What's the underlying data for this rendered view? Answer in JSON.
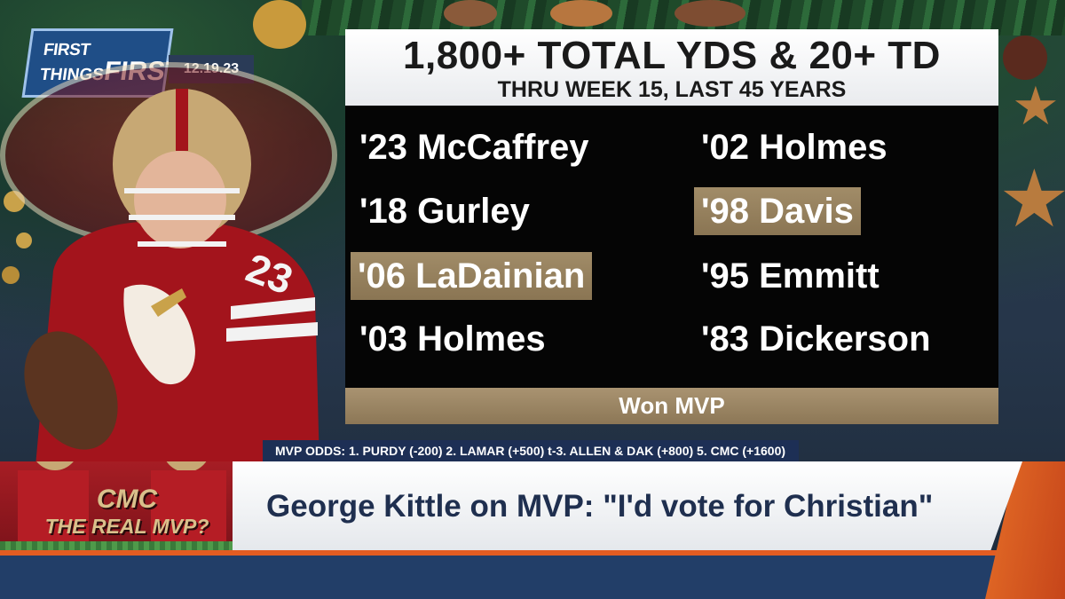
{
  "show": {
    "logo_line1": "FIRST",
    "logo_line2_small": "THINGS",
    "logo_line2_big": "FIRST",
    "date": "12.19.23"
  },
  "graphic": {
    "title": "1,800+ TOTAL YDS & 20+ TD",
    "subtitle": "THRU WEEK 15, LAST 45 YEARS",
    "left_column": [
      {
        "label": "'23 McCaffrey",
        "won_mvp": false
      },
      {
        "label": "'18 Gurley",
        "won_mvp": false
      },
      {
        "label": "'06 LaDainian",
        "won_mvp": true
      },
      {
        "label": "'03 Holmes",
        "won_mvp": false
      }
    ],
    "right_column": [
      {
        "label": "'02 Holmes",
        "won_mvp": false
      },
      {
        "label": "'98 Davis",
        "won_mvp": true
      },
      {
        "label": "'95 Emmitt",
        "won_mvp": false
      },
      {
        "label": "'83 Dickerson",
        "won_mvp": false
      }
    ],
    "legend": "Won MVP",
    "colors": {
      "mvp_highlight": "#9a8460",
      "panel_bg": "#050505"
    }
  },
  "ticker": {
    "text": "MVP ODDS: 1. PURDY (-200) 2. LAMAR (+500) t-3. ALLEN & DAK (+800) 5. CMC (+1600)"
  },
  "lower_third": {
    "promo_line1": "CMC",
    "promo_line2": "THE REAL MVP?",
    "headline": "George Kittle on MVP: \"I'd vote for Christian\""
  },
  "player": {
    "jersey_number": "23"
  }
}
